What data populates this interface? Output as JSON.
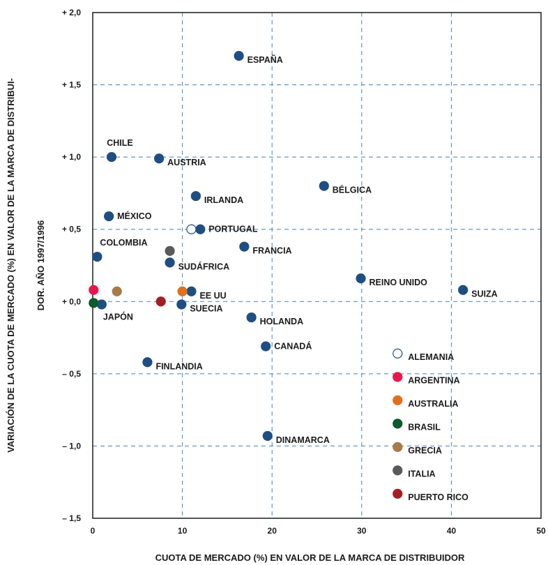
{
  "chart_data": {
    "type": "scatter",
    "xlabel": "CUOTA DE MERCADO (%) EN VALOR DE LA MARCA DE DISTRIBUIDOR",
    "ylabel_line1": "VARIACIÓN DE LA CUOTA DE MERCADO (%) EN VALOR DE LA MARCA DE DISTRIBUI-",
    "ylabel_line2": "DOR. AÑO 1997/1996",
    "xlim": [
      0,
      50
    ],
    "ylim": [
      -1.5,
      2.0
    ],
    "x_ticks": [
      {
        "value": 0,
        "label": "0"
      },
      {
        "value": 10,
        "label": "10"
      },
      {
        "value": 20,
        "label": "20"
      },
      {
        "value": 30,
        "label": "30"
      },
      {
        "value": 40,
        "label": "40"
      },
      {
        "value": 50,
        "label": "50"
      }
    ],
    "y_ticks": [
      {
        "value": 2.0,
        "label": "+ 2,0"
      },
      {
        "value": 1.5,
        "label": "+ 1,5"
      },
      {
        "value": 1.0,
        "label": "+ 1,0"
      },
      {
        "value": 0.5,
        "label": "+ 0,5"
      },
      {
        "value": 0.0,
        "label": "+ 0,0"
      },
      {
        "value": -0.5,
        "label": "– 0,5"
      },
      {
        "value": -1.0,
        "label": "– 1,0"
      },
      {
        "value": -1.5,
        "label": "– 1,5"
      }
    ],
    "grid": true,
    "grid_style": "dashed",
    "default_color": "#1f4e82",
    "points": [
      {
        "label": "ESPAÑA",
        "x": 16.3,
        "y": 1.7,
        "label_pos": "right-below"
      },
      {
        "label": "CHILE",
        "x": 2.1,
        "y": 1.0,
        "label_pos": "above"
      },
      {
        "label": "AUSTRIA",
        "x": 7.4,
        "y": 0.99,
        "label_pos": "right-below"
      },
      {
        "label": "IRLANDA",
        "x": 11.5,
        "y": 0.73,
        "label_pos": "right-below"
      },
      {
        "label": "BÉLGICA",
        "x": 25.8,
        "y": 0.8,
        "label_pos": "right-below"
      },
      {
        "label": "MÉXICO",
        "x": 1.8,
        "y": 0.59,
        "label_pos": "right"
      },
      {
        "label": "PORTUGAL",
        "x": 12.0,
        "y": 0.5,
        "label_pos": "right"
      },
      {
        "label": "FRANCIA",
        "x": 16.9,
        "y": 0.38,
        "label_pos": "right-below"
      },
      {
        "label": "COLOMBIA",
        "x": 0.5,
        "y": 0.31,
        "label_pos": "above-right"
      },
      {
        "label": "SUDÁFRICA",
        "x": 8.6,
        "y": 0.27,
        "label_pos": "right-below"
      },
      {
        "label": "REINO UNIDO",
        "x": 29.9,
        "y": 0.16,
        "label_pos": "right-below"
      },
      {
        "label": "SUIZA",
        "x": 41.3,
        "y": 0.08,
        "label_pos": "right-below"
      },
      {
        "label": "EE UU",
        "x": 11.0,
        "y": 0.07,
        "label_pos": "right-below"
      },
      {
        "label": "JAPÓN",
        "x": 1.0,
        "y": -0.02,
        "label_pos": "below-right"
      },
      {
        "label": "SUECIA",
        "x": 9.9,
        "y": -0.02,
        "label_pos": "right-below"
      },
      {
        "label": "HOLANDA",
        "x": 17.7,
        "y": -0.11,
        "label_pos": "right-below"
      },
      {
        "label": "CANADÁ",
        "x": 19.3,
        "y": -0.31,
        "label_pos": "right"
      },
      {
        "label": "FINLANDIA",
        "x": 6.1,
        "y": -0.42,
        "label_pos": "right-below"
      },
      {
        "label": "DINAMARCA",
        "x": 19.5,
        "y": -0.93,
        "label_pos": "right-below"
      },
      {
        "label": "",
        "x": 11.0,
        "y": 0.5,
        "series": "ALEMANIA"
      },
      {
        "label": "",
        "x": 0.1,
        "y": 0.08,
        "series": "ARGENTINA"
      },
      {
        "label": "",
        "x": 10.0,
        "y": 0.07,
        "series": "AUSTRALIA"
      },
      {
        "label": "",
        "x": 0.1,
        "y": -0.01,
        "series": "BRASIL"
      },
      {
        "label": "",
        "x": 2.7,
        "y": 0.07,
        "series": "GRECIA"
      },
      {
        "label": "",
        "x": 8.6,
        "y": 0.35,
        "series": "ITALIA"
      },
      {
        "label": "",
        "x": 7.6,
        "y": 0.0,
        "series": "PUERTO RICO"
      }
    ],
    "legend_position": "bottom-right",
    "legend": [
      {
        "name": "ALEMANIA",
        "color": "#ffffff",
        "stroke": "#1f4e82"
      },
      {
        "name": "ARGENTINA",
        "color": "#e8174b"
      },
      {
        "name": "AUSTRALIA",
        "color": "#e0701e"
      },
      {
        "name": "BRASIL",
        "color": "#0d5a2a"
      },
      {
        "name": "GRECIA",
        "color": "#a87a47"
      },
      {
        "name": "ITALIA",
        "color": "#5a5a5a"
      },
      {
        "name": "PUERTO RICO",
        "color": "#a31f24"
      }
    ]
  }
}
